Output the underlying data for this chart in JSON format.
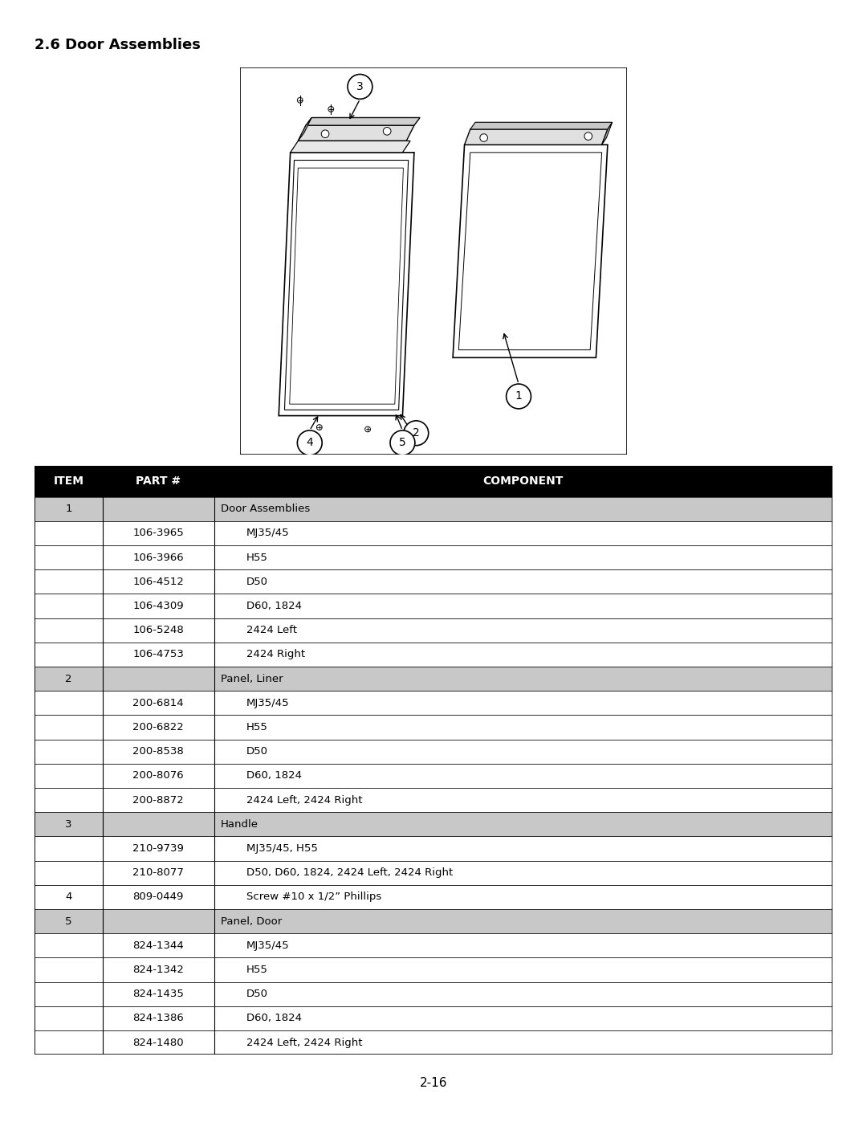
{
  "title": "2.6 Door Assemblies",
  "page_number": "2-16",
  "background_color": "#ffffff",
  "table_header": [
    "ITEM",
    "PART #",
    "COMPONENT"
  ],
  "table_rows": [
    [
      "1",
      "",
      "Door Assemblies"
    ],
    [
      "",
      "106-3965",
      "MJ35/45"
    ],
    [
      "",
      "106-3966",
      "H55"
    ],
    [
      "",
      "106-4512",
      "D50"
    ],
    [
      "",
      "106-4309",
      "D60, 1824"
    ],
    [
      "",
      "106-5248",
      "2424 Left"
    ],
    [
      "",
      "106-4753",
      "2424 Right"
    ],
    [
      "2",
      "",
      "Panel, Liner"
    ],
    [
      "",
      "200-6814",
      "MJ35/45"
    ],
    [
      "",
      "200-6822",
      "H55"
    ],
    [
      "",
      "200-8538",
      "D50"
    ],
    [
      "",
      "200-8076",
      "D60, 1824"
    ],
    [
      "",
      "200-8872",
      "2424 Left, 2424 Right"
    ],
    [
      "3",
      "",
      "Handle"
    ],
    [
      "",
      "210-9739",
      "MJ35/45, H55"
    ],
    [
      "",
      "210-8077",
      "D50, D60, 1824, 2424 Left, 2424 Right"
    ],
    [
      "4",
      "809-0449",
      "Screw #10 x 1/2” Phillips"
    ],
    [
      "5",
      "",
      "Panel, Door"
    ],
    [
      "",
      "824-1344",
      "MJ35/45"
    ],
    [
      "",
      "824-1342",
      "H55"
    ],
    [
      "",
      "824-1435",
      "D50"
    ],
    [
      "",
      "824-1386",
      "D60, 1824"
    ],
    [
      "",
      "824-1480",
      "2424 Left, 2424 Right"
    ]
  ],
  "shaded_rows": [
    0,
    7,
    13,
    17
  ],
  "shade_color": "#c8c8c8",
  "row_color": "#ffffff",
  "border_color": "#000000",
  "font_size": 9.5,
  "header_font_size": 10
}
